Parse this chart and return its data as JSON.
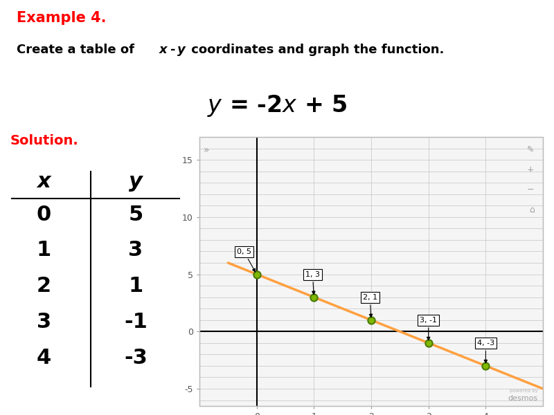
{
  "title_example": "Example 4.",
  "solution_label": "Solution.",
  "table_x_values": [
    0,
    1,
    2,
    3,
    4
  ],
  "table_y_values": [
    5,
    3,
    1,
    -1,
    -3
  ],
  "table_x_header": "x",
  "table_y_header": "y",
  "graph_points": [
    [
      0,
      5
    ],
    [
      1,
      3
    ],
    [
      2,
      1
    ],
    [
      3,
      -1
    ],
    [
      4,
      -3
    ]
  ],
  "point_labels": [
    "0, 5",
    "1, 3",
    "2, 1",
    "3, -1",
    "4, -3"
  ],
  "line_color": "#FFA040",
  "point_color": "#7FB800",
  "point_edge_color": "#4A7A00",
  "graph_xlim": [
    -0.5,
    5.0
  ],
  "graph_ylim": [
    -6.5,
    17
  ],
  "background_color": "#FFFFFF",
  "graph_bg_color": "#F5F5F5",
  "example_color": "#FF0000",
  "text_color": "#000000",
  "grid_color": "#CCCCCC"
}
